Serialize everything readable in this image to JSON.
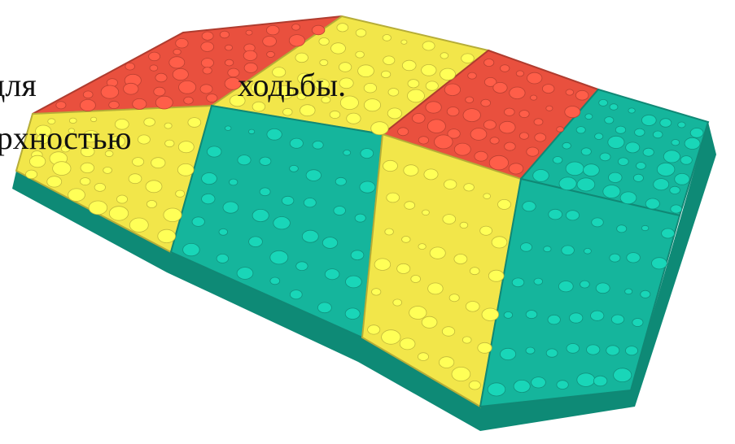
{
  "overlay_text": {
    "line1_left": "для",
    "line1_right": "ходьбы.",
    "line2": "ерхностью"
  },
  "subject": {
    "icon": "massage-mat-icon",
    "colors": {
      "red": "#e9503e",
      "yellow": "#f2e64a",
      "teal": "#15b59c",
      "teal_dark": "#0e8a76",
      "background": "#ffffff"
    },
    "tiles": [
      {
        "color": "red"
      },
      {
        "color": "yellow"
      },
      {
        "color": "red"
      },
      {
        "color": "teal"
      },
      {
        "color": "yellow"
      },
      {
        "color": "teal"
      },
      {
        "color": "yellow"
      },
      {
        "color": "teal"
      }
    ]
  }
}
